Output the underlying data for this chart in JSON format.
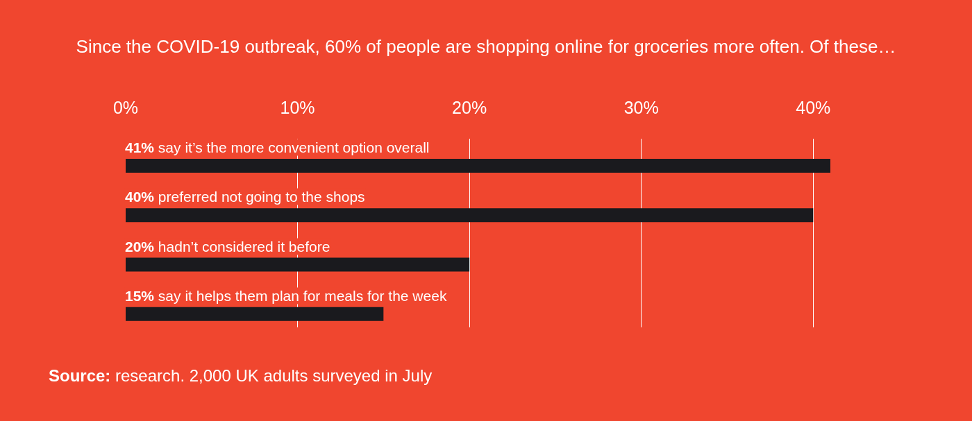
{
  "chart_data": {
    "type": "bar",
    "orientation": "horizontal",
    "title": "Since the COVID-19 outbreak, 60% of people are shopping online for groceries more often. Of these…",
    "categories": [
      "say it’s the more convenient option overall",
      "preferred not going to the shops",
      "hadn’t considered it before",
      "say it helps them plan for meals for the week"
    ],
    "values": [
      41,
      40,
      20,
      15
    ],
    "value_labels": [
      "41%",
      "40%",
      "20%",
      "15%"
    ],
    "color": "#1a1a1e",
    "xlim": [
      0,
      41
    ],
    "xticks": [
      {
        "value": 0,
        "label": "0%"
      },
      {
        "value": 10,
        "label": "10%"
      },
      {
        "value": 20,
        "label": "20%"
      },
      {
        "value": 30,
        "label": "30%"
      },
      {
        "value": 40,
        "label": "40%"
      }
    ],
    "grid": "x",
    "legend": false,
    "annotations": [
      "Source: research. 2,000 UK adults surveyed in July"
    ]
  }
}
